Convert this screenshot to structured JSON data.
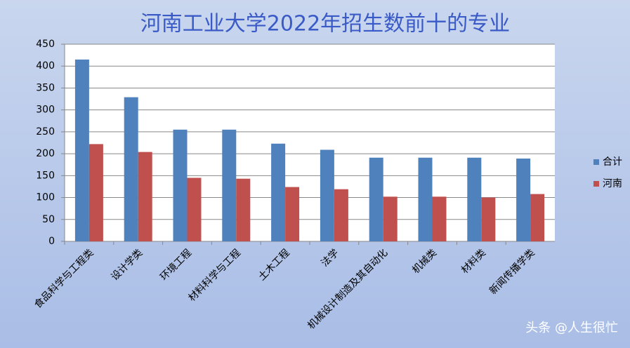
{
  "chart_data": {
    "type": "bar",
    "title": "河南工业大学2022年招生数前十的专业",
    "categories": [
      "食品科学与工程类",
      "设计学类",
      "环境工程",
      "材料科学与工程",
      "土木工程",
      "法学",
      "机械设计制造及其自动化",
      "机械类",
      "材料类",
      "新闻传播学类"
    ],
    "series": [
      {
        "name": "合计",
        "color": "#4f81bd",
        "values": [
          415,
          329,
          255,
          255,
          223,
          209,
          191,
          191,
          191,
          189
        ]
      },
      {
        "name": "河南",
        "color": "#c0504d",
        "values": [
          222,
          204,
          145,
          143,
          124,
          119,
          102,
          102,
          100,
          108
        ]
      }
    ],
    "ylim": [
      0,
      450
    ],
    "yticks": [
      0,
      50,
      100,
      150,
      200,
      250,
      300,
      350,
      400,
      450
    ],
    "grid": true,
    "legend": "right",
    "watermark": "头条 @人生很忙"
  }
}
